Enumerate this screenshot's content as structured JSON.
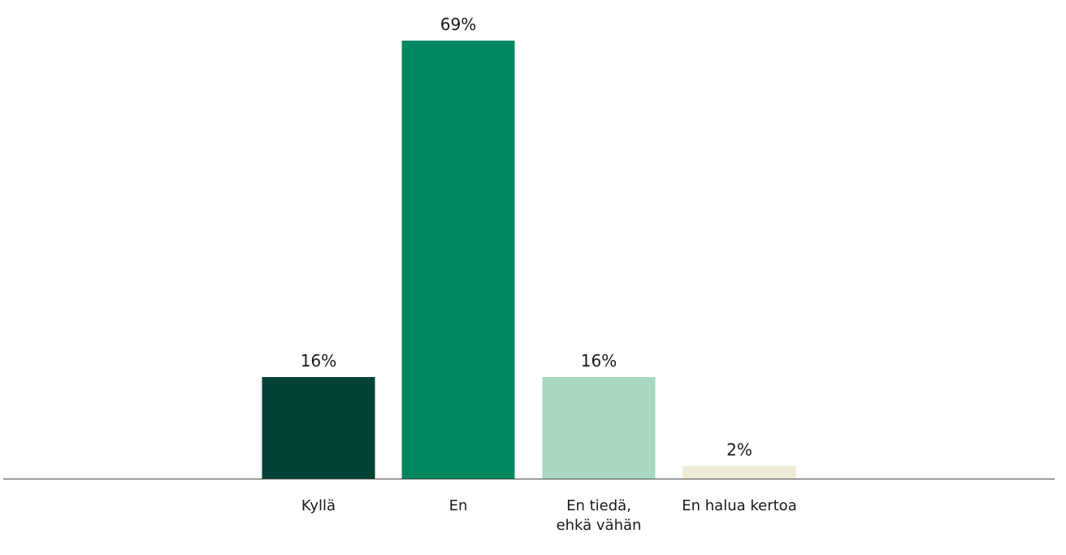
{
  "chart_data": {
    "type": "bar",
    "title": "",
    "xlabel": "",
    "ylabel": "",
    "ylim": [
      0,
      69
    ],
    "grid": false,
    "categories": [
      "Kyllä",
      "En",
      "En tiedä, ehkä vähän",
      "En halua kertoa"
    ],
    "category_lines": [
      [
        "Kyllä"
      ],
      [
        "En"
      ],
      [
        "En tiedä,",
        "ehkä vähän"
      ],
      [
        "En halua kertoa"
      ]
    ],
    "values": [
      16,
      69,
      16,
      2
    ],
    "value_labels": [
      "16%",
      "69%",
      "16%",
      "2%"
    ],
    "colors": [
      "#004235",
      "#008761",
      "#A8D8C0",
      "#EFEBD6"
    ],
    "baseline_color": "#4a4a4a"
  }
}
